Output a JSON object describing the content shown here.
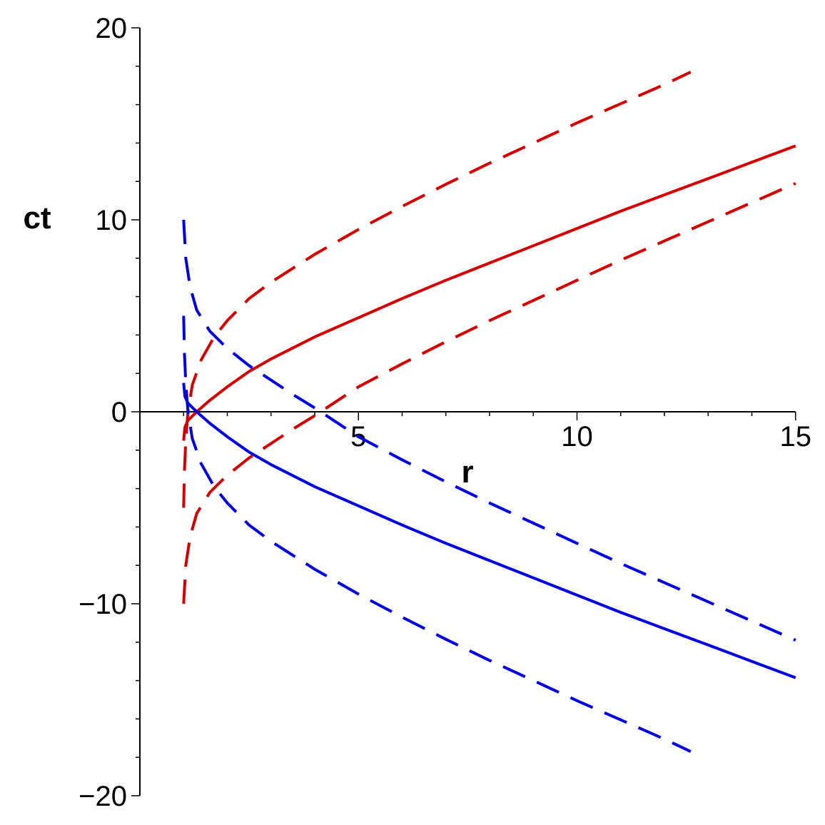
{
  "chart_data": {
    "type": "line",
    "title": "",
    "xlabel": "r",
    "ylabel": "ct",
    "xlim": [
      -2,
      15
    ],
    "ylim": [
      -20,
      20
    ],
    "x_ticks": [
      5,
      10,
      15
    ],
    "y_ticks": [
      -20,
      -10,
      0,
      10,
      20
    ],
    "grid": false,
    "colors": {
      "red": "#d40000",
      "blue": "#0000e0"
    },
    "series": [
      {
        "color": "red",
        "style": "solid",
        "points": [
          [
            1,
            -1.5
          ],
          [
            1.03,
            -0.8
          ],
          [
            1.1,
            -0.45
          ],
          [
            1.3,
            0
          ],
          [
            1.6,
            0.6
          ],
          [
            2,
            1.3
          ],
          [
            2.5,
            2.1
          ],
          [
            3,
            2.75
          ],
          [
            4,
            3.9
          ],
          [
            5,
            4.9
          ],
          [
            6,
            5.9
          ],
          [
            7,
            6.85
          ],
          [
            8,
            7.75
          ],
          [
            9,
            8.65
          ],
          [
            10,
            9.55
          ],
          [
            11,
            10.45
          ],
          [
            12,
            11.3
          ],
          [
            13,
            12.15
          ],
          [
            14,
            13
          ],
          [
            15,
            13.85
          ]
        ]
      },
      {
        "color": "blue",
        "style": "solid",
        "points": [
          [
            1,
            1.5
          ],
          [
            1.03,
            0.8
          ],
          [
            1.1,
            0.45
          ],
          [
            1.3,
            0
          ],
          [
            1.6,
            -0.6
          ],
          [
            2,
            -1.3
          ],
          [
            2.5,
            -2.1
          ],
          [
            3,
            -2.75
          ],
          [
            4,
            -3.9
          ],
          [
            5,
            -4.9
          ],
          [
            6,
            -5.9
          ],
          [
            7,
            -6.85
          ],
          [
            8,
            -7.75
          ],
          [
            9,
            -8.65
          ],
          [
            10,
            -9.55
          ],
          [
            11,
            -10.45
          ],
          [
            12,
            -11.3
          ],
          [
            13,
            -12.15
          ],
          [
            14,
            -13
          ],
          [
            15,
            -13.85
          ]
        ]
      },
      {
        "color": "red",
        "style": "dashed",
        "points": [
          [
            1,
            -10
          ],
          [
            1.05,
            -8
          ],
          [
            1.15,
            -6.5
          ],
          [
            1.3,
            -5.3
          ],
          [
            1.6,
            -4.2
          ],
          [
            2,
            -3.3
          ],
          [
            2.5,
            -2.4
          ],
          [
            3,
            -1.65
          ],
          [
            3.5,
            -0.9
          ],
          [
            4,
            -0.2
          ],
          [
            4.2,
            0.1
          ],
          [
            5,
            1.3
          ],
          [
            6,
            2.5
          ],
          [
            7,
            3.65
          ],
          [
            8,
            4.75
          ],
          [
            9,
            5.8
          ],
          [
            10,
            6.85
          ],
          [
            11,
            7.9
          ],
          [
            12,
            8.9
          ],
          [
            13,
            9.9
          ],
          [
            14,
            10.9
          ],
          [
            15,
            11.9
          ]
        ]
      },
      {
        "color": "red",
        "style": "dashed",
        "points": [
          [
            1,
            -5
          ],
          [
            1.02,
            -3
          ],
          [
            1.05,
            -1.5
          ],
          [
            1.1,
            0
          ],
          [
            1.2,
            1.4
          ],
          [
            1.4,
            2.7
          ],
          [
            1.7,
            3.9
          ],
          [
            2,
            4.75
          ],
          [
            2.5,
            5.9
          ],
          [
            3,
            6.75
          ],
          [
            4,
            8.2
          ],
          [
            5,
            9.5
          ],
          [
            6,
            10.7
          ],
          [
            7,
            11.85
          ],
          [
            8,
            12.95
          ],
          [
            9,
            14
          ],
          [
            10,
            15.05
          ],
          [
            11,
            16.05
          ],
          [
            12,
            17.05
          ],
          [
            12.6,
            17.7
          ]
        ]
      },
      {
        "color": "blue",
        "style": "dashed",
        "points": [
          [
            1,
            10
          ],
          [
            1.05,
            8
          ],
          [
            1.15,
            6.5
          ],
          [
            1.3,
            5.3
          ],
          [
            1.6,
            4.2
          ],
          [
            2,
            3.3
          ],
          [
            2.5,
            2.4
          ],
          [
            3,
            1.65
          ],
          [
            3.5,
            0.9
          ],
          [
            4,
            0.2
          ],
          [
            4.2,
            -0.1
          ],
          [
            5,
            -1.3
          ],
          [
            6,
            -2.5
          ],
          [
            7,
            -3.65
          ],
          [
            8,
            -4.75
          ],
          [
            9,
            -5.8
          ],
          [
            10,
            -6.85
          ],
          [
            11,
            -7.9
          ],
          [
            12,
            -8.9
          ],
          [
            13,
            -9.9
          ],
          [
            14,
            -10.9
          ],
          [
            15,
            -11.9
          ]
        ]
      },
      {
        "color": "blue",
        "style": "dashed",
        "points": [
          [
            1,
            5
          ],
          [
            1.02,
            3
          ],
          [
            1.05,
            1.5
          ],
          [
            1.1,
            0
          ],
          [
            1.2,
            -1.4
          ],
          [
            1.4,
            -2.7
          ],
          [
            1.7,
            -3.9
          ],
          [
            2,
            -4.75
          ],
          [
            2.5,
            -5.9
          ],
          [
            3,
            -6.75
          ],
          [
            4,
            -8.2
          ],
          [
            5,
            -9.5
          ],
          [
            6,
            -10.7
          ],
          [
            7,
            -11.85
          ],
          [
            8,
            -12.95
          ],
          [
            9,
            -14
          ],
          [
            10,
            -15.05
          ],
          [
            11,
            -16.05
          ],
          [
            12,
            -17.05
          ],
          [
            12.6,
            -17.7
          ]
        ]
      }
    ]
  }
}
